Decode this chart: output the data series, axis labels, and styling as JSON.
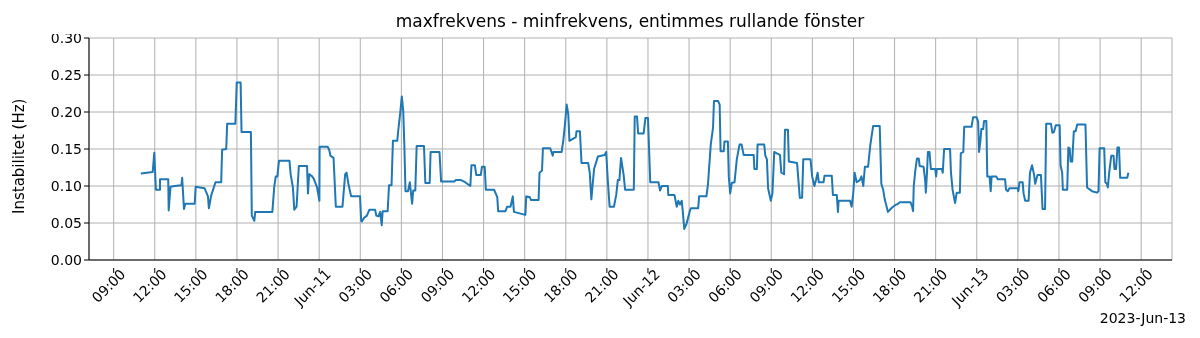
{
  "chart_data": {
    "type": "line",
    "title": "maxfrekvens - minfrekvens, entimmes rullande fönster",
    "ylabel": "Instabilitet (Hz)",
    "annotations": [
      "2023-Jun-13"
    ],
    "color": "#1f77b4",
    "grid": true,
    "marker": "none",
    "line_style": "solid",
    "xlim": [
      "2023-06-10T07:12",
      "2023-06-13T14:15"
    ],
    "ylim": [
      0,
      0.3
    ],
    "xticks": [
      {
        "value": "2023-06-10T09:00",
        "label": "09:00"
      },
      {
        "value": "2023-06-10T12:00",
        "label": "12:00"
      },
      {
        "value": "2023-06-10T15:00",
        "label": "15:00"
      },
      {
        "value": "2023-06-10T18:00",
        "label": "18:00"
      },
      {
        "value": "2023-06-10T21:00",
        "label": "21:00"
      },
      {
        "value": "2023-06-11T00:00",
        "label": "Jun-11"
      },
      {
        "value": "2023-06-11T03:00",
        "label": "03:00"
      },
      {
        "value": "2023-06-11T06:00",
        "label": "06:00"
      },
      {
        "value": "2023-06-11T09:00",
        "label": "09:00"
      },
      {
        "value": "2023-06-11T12:00",
        "label": "12:00"
      },
      {
        "value": "2023-06-11T15:00",
        "label": "15:00"
      },
      {
        "value": "2023-06-11T18:00",
        "label": "18:00"
      },
      {
        "value": "2023-06-11T21:00",
        "label": "21:00"
      },
      {
        "value": "2023-06-12T00:00",
        "label": "Jun-12"
      },
      {
        "value": "2023-06-12T03:00",
        "label": "03:00"
      },
      {
        "value": "2023-06-12T06:00",
        "label": "06:00"
      },
      {
        "value": "2023-06-12T09:00",
        "label": "09:00"
      },
      {
        "value": "2023-06-12T12:00",
        "label": "12:00"
      },
      {
        "value": "2023-06-12T15:00",
        "label": "15:00"
      },
      {
        "value": "2023-06-12T18:00",
        "label": "18:00"
      },
      {
        "value": "2023-06-12T21:00",
        "label": "21:00"
      },
      {
        "value": "2023-06-13T00:00",
        "label": "Jun-13"
      },
      {
        "value": "2023-06-13T03:00",
        "label": "03:00"
      },
      {
        "value": "2023-06-13T06:00",
        "label": "06:00"
      },
      {
        "value": "2023-06-13T09:00",
        "label": "09:00"
      },
      {
        "value": "2023-06-13T12:00",
        "label": "12:00"
      }
    ],
    "yticks": [
      {
        "value": 0,
        "label": "0.00"
      },
      {
        "value": 0.05,
        "label": "0.05"
      },
      {
        "value": 0.1,
        "label": "0.10"
      },
      {
        "value": 0.15,
        "label": "0.15"
      },
      {
        "value": 0.2,
        "label": "0.20"
      },
      {
        "value": 0.25,
        "label": "0.25"
      },
      {
        "value": 0.3,
        "label": "0.30"
      }
    ],
    "x": [
      "2023-06-10T10:59",
      "2023-06-10T11:51",
      "2023-06-10T11:58",
      "2023-06-10T12:05",
      "2023-06-10T12:23",
      "2023-06-10T12:23",
      "2023-06-10T12:59",
      "2023-06-10T13:01",
      "2023-06-10T13:09",
      "2023-06-10T13:28",
      "2023-06-10T13:57",
      "2023-06-10T14:00",
      "2023-06-10T14:08",
      "2023-06-10T14:14",
      "2023-06-10T14:55",
      "2023-06-10T14:59",
      "2023-06-10T15:38",
      "2023-06-10T15:53",
      "2023-06-10T15:57",
      "2023-06-10T16:07",
      "2023-06-10T16:26",
      "2023-06-10T16:51",
      "2023-06-10T16:55",
      "2023-06-10T17:13",
      "2023-06-10T17:17",
      "2023-06-10T17:53",
      "2023-06-10T17:59",
      "2023-06-10T18:16",
      "2023-06-10T18:20",
      "2023-06-10T19:01",
      "2023-06-10T19:05",
      "2023-06-10T19:16",
      "2023-06-10T19:20",
      "2023-06-10T20:35",
      "2023-06-10T20:43",
      "2023-06-10T20:50",
      "2023-06-10T20:57",
      "2023-06-10T21:04",
      "2023-06-10T21:50",
      "2023-06-10T21:55",
      "2023-06-10T22:05",
      "2023-06-10T22:11",
      "2023-06-10T22:21",
      "2023-06-10T22:31",
      "2023-06-10T23:07",
      "2023-06-10T23:11",
      "2023-06-10T23:16",
      "2023-06-10T23:29",
      "2023-06-10T23:36",
      "2023-06-10T23:51",
      "2023-06-11T00:01",
      "2023-06-11T00:02",
      "2023-06-11T00:37",
      "2023-06-11T00:44",
      "2023-06-11T00:49",
      "2023-06-11T01:03",
      "2023-06-11T01:13",
      "2023-06-11T01:42",
      "2023-06-11T01:54",
      "2023-06-11T02:00",
      "2023-06-11T02:08",
      "2023-06-11T02:20",
      "2023-06-11T02:59",
      "2023-06-11T03:04",
      "2023-06-11T03:07",
      "2023-06-11T03:17",
      "2023-06-11T03:29",
      "2023-06-11T03:40",
      "2023-06-11T04:05",
      "2023-06-11T04:10",
      "2023-06-11T04:20",
      "2023-06-11T04:27",
      "2023-06-11T04:34",
      "2023-06-11T04:38",
      "2023-06-11T05:00",
      "2023-06-11T05:06",
      "2023-06-11T05:17",
      "2023-06-11T05:23",
      "2023-06-11T05:42",
      "2023-06-11T05:46",
      "2023-06-11T05:56",
      "2023-06-11T06:02",
      "2023-06-11T06:08",
      "2023-06-11T06:13",
      "2023-06-11T06:18",
      "2023-06-11T06:29",
      "2023-06-11T06:37",
      "2023-06-11T06:47",
      "2023-06-11T06:52",
      "2023-06-11T07:01",
      "2023-06-11T07:07",
      "2023-06-11T07:39",
      "2023-06-11T07:45",
      "2023-06-11T08:04",
      "2023-06-11T08:08",
      "2023-06-11T08:47",
      "2023-06-11T08:54",
      "2023-06-11T09:52",
      "2023-06-11T09:59",
      "2023-06-11T10:21",
      "2023-06-11T10:35",
      "2023-06-11T11:02",
      "2023-06-11T11:07",
      "2023-06-11T11:22",
      "2023-06-11T11:28",
      "2023-06-11T11:48",
      "2023-06-11T11:53",
      "2023-06-11T12:05",
      "2023-06-11T12:10",
      "2023-06-11T12:46",
      "2023-06-11T13:00",
      "2023-06-11T13:04",
      "2023-06-11T13:36",
      "2023-06-11T13:43",
      "2023-06-11T13:58",
      "2023-06-11T14:08",
      "2023-06-11T14:13",
      "2023-06-11T15:03",
      "2023-06-11T15:07",
      "2023-06-11T15:22",
      "2023-06-11T15:28",
      "2023-06-11T16:01",
      "2023-06-11T16:05",
      "2023-06-11T16:16",
      "2023-06-11T16:20",
      "2023-06-11T16:52",
      "2023-06-11T17:03",
      "2023-06-11T17:06",
      "2023-06-11T17:42",
      "2023-06-11T17:49",
      "2023-06-11T17:56",
      "2023-06-11T18:04",
      "2023-06-11T18:11",
      "2023-06-11T18:16",
      "2023-06-11T18:44",
      "2023-06-11T18:47",
      "2023-06-11T19:02",
      "2023-06-11T19:09",
      "2023-06-11T19:38",
      "2023-06-11T19:45",
      "2023-06-11T19:52",
      "2023-06-11T20:04",
      "2023-06-11T20:21",
      "2023-06-11T20:50",
      "2023-06-11T20:57",
      "2023-06-11T21:05",
      "2023-06-11T21:12",
      "2023-06-11T21:31",
      "2023-06-11T21:41",
      "2023-06-11T21:48",
      "2023-06-11T21:55",
      "2023-06-11T22:02",
      "2023-06-11T22:13",
      "2023-06-11T22:20",
      "2023-06-11T22:58",
      "2023-06-11T23:02",
      "2023-06-11T23:12",
      "2023-06-11T23:17",
      "2023-06-11T23:41",
      "2023-06-11T23:49",
      "2023-06-12T00:00",
      "2023-06-12T00:10",
      "2023-06-12T00:46",
      "2023-06-12T00:53",
      "2023-06-12T01:01",
      "2023-06-12T01:27",
      "2023-06-12T01:29",
      "2023-06-12T01:56",
      "2023-06-12T02:06",
      "2023-06-12T02:13",
      "2023-06-12T02:20",
      "2023-06-12T02:28",
      "2023-06-12T02:32",
      "2023-06-12T02:39",
      "2023-06-12T02:49",
      "2023-06-12T03:04",
      "2023-06-12T03:08",
      "2023-06-12T03:40",
      "2023-06-12T03:44",
      "2023-06-12T04:16",
      "2023-06-12T04:23",
      "2023-06-12T04:35",
      "2023-06-12T04:45",
      "2023-06-12T04:49",
      "2023-06-12T05:07",
      "2023-06-12T05:14",
      "2023-06-12T05:18",
      "2023-06-12T05:32",
      "2023-06-12T05:35",
      "2023-06-12T05:50",
      "2023-06-12T05:54",
      "2023-06-12T06:00",
      "2023-06-12T06:07",
      "2023-06-12T06:19",
      "2023-06-12T06:29",
      "2023-06-12T06:41",
      "2023-06-12T06:50",
      "2023-06-12T06:59",
      "2023-06-12T07:43",
      "2023-06-12T07:46",
      "2023-06-12T07:57",
      "2023-06-12T08:00",
      "2023-06-12T08:29",
      "2023-06-12T08:34",
      "2023-06-12T08:41",
      "2023-06-12T08:46",
      "2023-06-12T08:58",
      "2023-06-12T09:05",
      "2023-06-12T09:13",
      "2023-06-12T09:24",
      "2023-06-12T09:38",
      "2023-06-12T09:44",
      "2023-06-12T09:56",
      "2023-06-12T10:00",
      "2023-06-12T10:13",
      "2023-06-12T10:17",
      "2023-06-12T10:53",
      "2023-06-12T11:05",
      "2023-06-12T11:15",
      "2023-06-12T11:20",
      "2023-06-12T11:52",
      "2023-06-12T11:59",
      "2023-06-12T12:09",
      "2023-06-12T12:16",
      "2023-06-12T12:23",
      "2023-06-12T12:28",
      "2023-06-12T12:49",
      "2023-06-12T12:53",
      "2023-06-12T13:25",
      "2023-06-12T13:30",
      "2023-06-12T13:47",
      "2023-06-12T13:52",
      "2023-06-12T13:55",
      "2023-06-12T14:45",
      "2023-06-12T14:52",
      "2023-06-12T14:59",
      "2023-06-12T15:05",
      "2023-06-12T15:14",
      "2023-06-12T15:28",
      "2023-06-12T15:35",
      "2023-06-12T15:43",
      "2023-06-12T15:50",
      "2023-06-12T16:04",
      "2023-06-12T16:14",
      "2023-06-12T16:26",
      "2023-06-12T16:55",
      "2023-06-12T17:02",
      "2023-06-12T17:10",
      "2023-06-12T17:17",
      "2023-06-12T17:31",
      "2023-06-12T17:46",
      "2023-06-12T17:53",
      "2023-06-12T18:07",
      "2023-06-12T18:11",
      "2023-06-12T18:23",
      "2023-06-12T19:10",
      "2023-06-12T19:17",
      "2023-06-12T19:21",
      "2023-06-12T19:24",
      "2023-06-12T19:31",
      "2023-06-12T19:38",
      "2023-06-12T19:46",
      "2023-06-12T19:50",
      "2023-06-12T20:07",
      "2023-06-12T20:14",
      "2023-06-12T20:17",
      "2023-06-12T20:22",
      "2023-06-12T20:26",
      "2023-06-12T20:33",
      "2023-06-12T20:39",
      "2023-06-12T20:58",
      "2023-06-12T21:02",
      "2023-06-12T21:05",
      "2023-06-12T21:27",
      "2023-06-12T21:31",
      "2023-06-12T21:37",
      "2023-06-12T22:03",
      "2023-06-12T22:07",
      "2023-06-12T22:14",
      "2023-06-12T22:25",
      "2023-06-12T22:32",
      "2023-06-12T22:46",
      "2023-06-12T22:50",
      "2023-06-12T23:01",
      "2023-06-12T23:05",
      "2023-06-12T23:37",
      "2023-06-12T23:44",
      "2023-06-12T23:59",
      "2023-06-13T00:06",
      "2023-06-13T00:10",
      "2023-06-13T00:16",
      "2023-06-13T00:20",
      "2023-06-13T00:28",
      "2023-06-13T00:32",
      "2023-06-13T00:42",
      "2023-06-13T00:46",
      "2023-06-13T00:56",
      "2023-06-13T01:01",
      "2023-06-13T01:05",
      "2023-06-13T01:25",
      "2023-06-13T01:32",
      "2023-06-13T02:04",
      "2023-06-13T02:08",
      "2023-06-13T02:16",
      "2023-06-13T02:23",
      "2023-06-13T02:59",
      "2023-06-13T03:02",
      "2023-06-13T03:07",
      "2023-06-13T03:21",
      "2023-06-13T03:25",
      "2023-06-13T03:32",
      "2023-06-13T03:47",
      "2023-06-13T03:53",
      "2023-06-13T04:02",
      "2023-06-13T04:11",
      "2023-06-13T04:16",
      "2023-06-13T04:26",
      "2023-06-13T04:41",
      "2023-06-13T04:48",
      "2023-06-13T04:59",
      "2023-06-13T05:04",
      "2023-06-13T05:25",
      "2023-06-13T05:31",
      "2023-06-13T05:38",
      "2023-06-13T05:46",
      "2023-06-13T06:03",
      "2023-06-13T06:07",
      "2023-06-13T06:14",
      "2023-06-13T06:17",
      "2023-06-13T06:36",
      "2023-06-13T06:41",
      "2023-06-13T06:47",
      "2023-06-13T06:51",
      "2023-06-13T06:58",
      "2023-06-13T07:05",
      "2023-06-13T07:13",
      "2023-06-13T07:20",
      "2023-06-13T07:56",
      "2023-06-13T08:03",
      "2023-06-13T08:25",
      "2023-06-13T08:46",
      "2023-06-13T08:53",
      "2023-06-13T08:58",
      "2023-06-13T09:18",
      "2023-06-13T09:23",
      "2023-06-13T09:30",
      "2023-06-13T09:34",
      "2023-06-13T09:40",
      "2023-06-13T09:49",
      "2023-06-13T09:59",
      "2023-06-13T10:03",
      "2023-06-13T10:10",
      "2023-06-13T10:16",
      "2023-06-13T10:23",
      "2023-06-13T10:28",
      "2023-06-13T10:59",
      "2023-06-13T11:04"
    ],
    "values": [
      0.117,
      0.119,
      0.145,
      0.095,
      0.095,
      0.109,
      0.109,
      0.067,
      0.099,
      0.1,
      0.101,
      0.111,
      0.069,
      0.076,
      0.076,
      0.099,
      0.097,
      0.086,
      0.07,
      0.087,
      0.105,
      0.105,
      0.149,
      0.15,
      0.184,
      0.184,
      0.24,
      0.24,
      0.173,
      0.173,
      0.06,
      0.053,
      0.065,
      0.065,
      0.098,
      0.113,
      0.113,
      0.134,
      0.134,
      0.116,
      0.098,
      0.068,
      0.072,
      0.127,
      0.127,
      0.09,
      0.116,
      0.113,
      0.11,
      0.098,
      0.08,
      0.153,
      0.153,
      0.149,
      0.141,
      0.138,
      0.072,
      0.072,
      0.116,
      0.118,
      0.103,
      0.086,
      0.086,
      0.053,
      0.052,
      0.057,
      0.06,
      0.068,
      0.068,
      0.06,
      0.059,
      0.065,
      0.047,
      0.066,
      0.066,
      0.101,
      0.101,
      0.161,
      0.161,
      0.174,
      0.202,
      0.221,
      0.202,
      0.156,
      0.093,
      0.093,
      0.105,
      0.076,
      0.094,
      0.094,
      0.154,
      0.154,
      0.104,
      0.104,
      0.146,
      0.146,
      0.106,
      0.106,
      0.108,
      0.108,
      0.106,
      0.1,
      0.128,
      0.128,
      0.115,
      0.115,
      0.126,
      0.126,
      0.095,
      0.095,
      0.085,
      0.066,
      0.066,
      0.072,
      0.072,
      0.086,
      0.065,
      0.061,
      0.086,
      0.085,
      0.081,
      0.081,
      0.118,
      0.121,
      0.151,
      0.151,
      0.141,
      0.146,
      0.146,
      0.161,
      0.182,
      0.21,
      0.197,
      0.161,
      0.166,
      0.174,
      0.174,
      0.131,
      0.131,
      0.118,
      0.082,
      0.123,
      0.14,
      0.142,
      0.146,
      0.103,
      0.072,
      0.072,
      0.088,
      0.108,
      0.108,
      0.138,
      0.116,
      0.095,
      0.095,
      0.194,
      0.194,
      0.171,
      0.171,
      0.192,
      0.192,
      0.105,
      0.105,
      0.094,
      0.1,
      0.1,
      0.088,
      0.088,
      0.072,
      0.08,
      0.075,
      0.08,
      0.067,
      0.042,
      0.049,
      0.067,
      0.07,
      0.07,
      0.086,
      0.086,
      0.103,
      0.156,
      0.179,
      0.215,
      0.215,
      0.21,
      0.147,
      0.147,
      0.16,
      0.16,
      0.113,
      0.09,
      0.104,
      0.105,
      0.136,
      0.156,
      0.156,
      0.142,
      0.142,
      0.123,
      0.123,
      0.156,
      0.156,
      0.141,
      0.136,
      0.097,
      0.08,
      0.09,
      0.146,
      0.144,
      0.142,
      0.118,
      0.116,
      0.176,
      0.176,
      0.133,
      0.131,
      0.084,
      0.084,
      0.136,
      0.136,
      0.113,
      0.1,
      0.108,
      0.118,
      0.105,
      0.105,
      0.114,
      0.114,
      0.088,
      0.088,
      0.065,
      0.08,
      0.08,
      0.072,
      0.09,
      0.118,
      0.105,
      0.108,
      0.113,
      0.1,
      0.126,
      0.126,
      0.156,
      0.181,
      0.181,
      0.103,
      0.095,
      0.082,
      0.065,
      0.07,
      0.072,
      0.075,
      0.075,
      0.078,
      0.078,
      0.072,
      0.066,
      0.1,
      0.121,
      0.137,
      0.137,
      0.127,
      0.126,
      0.108,
      0.091,
      0.118,
      0.146,
      0.146,
      0.123,
      0.123,
      0.113,
      0.123,
      0.123,
      0.118,
      0.15,
      0.15,
      0.118,
      0.095,
      0.077,
      0.091,
      0.091,
      0.144,
      0.146,
      0.18,
      0.18,
      0.193,
      0.193,
      0.187,
      0.146,
      0.161,
      0.177,
      0.177,
      0.188,
      0.188,
      0.113,
      0.113,
      0.093,
      0.113,
      0.113,
      0.109,
      0.109,
      0.095,
      0.093,
      0.097,
      0.097,
      0.093,
      0.105,
      0.105,
      0.09,
      0.08,
      0.08,
      0.118,
      0.128,
      0.115,
      0.103,
      0.115,
      0.115,
      0.069,
      0.069,
      0.184,
      0.184,
      0.172,
      0.173,
      0.182,
      0.182,
      0.128,
      0.118,
      0.095,
      0.095,
      0.152,
      0.151,
      0.133,
      0.133,
      0.174,
      0.174,
      0.183,
      0.183,
      0.098,
      0.093,
      0.091,
      0.093,
      0.151,
      0.151,
      0.105,
      0.103,
      0.098,
      0.118,
      0.141,
      0.141,
      0.123,
      0.123,
      0.152,
      0.152,
      0.111,
      0.111,
      0.118
    ]
  }
}
